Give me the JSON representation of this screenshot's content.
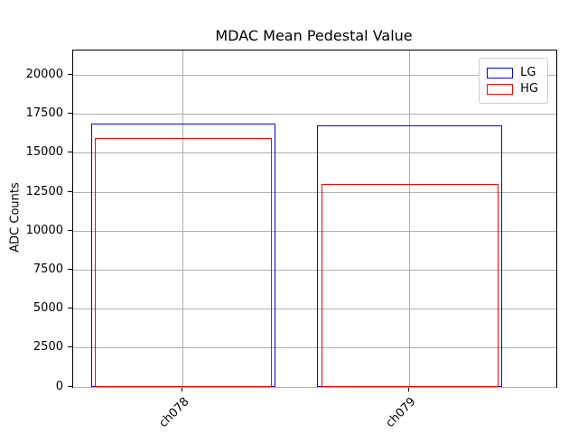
{
  "chart_data": {
    "type": "bar",
    "title": "MDAC Mean Pedestal Value",
    "xlabel": "",
    "ylabel": "ADC Counts",
    "categories": [
      "ch078",
      "ch079"
    ],
    "series": [
      {
        "name": "LG",
        "color": "#0000ff",
        "values": [
          16900,
          16800
        ]
      },
      {
        "name": "HG",
        "color": "#ff0000",
        "values": [
          16000,
          13050
        ]
      }
    ],
    "ylim": [
      0,
      21600
    ],
    "yticks": [
      0,
      2500,
      5000,
      7500,
      10000,
      12500,
      15000,
      17500,
      20000
    ],
    "grid": true,
    "legend_position": "upper right",
    "bar_style": "unfilled-outline"
  }
}
